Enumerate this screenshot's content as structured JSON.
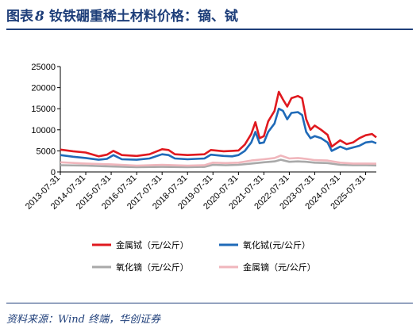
{
  "header": {
    "fig_label": "图表",
    "fig_number": "8",
    "title_text": "钕铁硼重稀土材料价格：镝、铽"
  },
  "source": "资料来源：Wind 终端，华创证券",
  "chart_data": {
    "type": "line",
    "title": "钕铁硼重稀土材料价格：镝、铽",
    "xlabel": "",
    "ylabel": "",
    "ylim": [
      0,
      25000
    ],
    "yticks": [
      0,
      5000,
      10000,
      15000,
      20000,
      25000
    ],
    "xticks": [
      "2013-07-31",
      "2014-07-31",
      "2015-07-31",
      "2016-07-31",
      "2017-07-31",
      "2018-07-31",
      "2019-07-31",
      "2020-07-31",
      "2021-07-31",
      "2022-07-31",
      "2023-07-31",
      "2024-07-31",
      "2025-07-31"
    ],
    "x_start": "2013-07-31",
    "x_end": "2025-12-31",
    "legend_position": "bottom",
    "grid": false,
    "series": [
      {
        "name": "金属铽（元/公斤）",
        "color": "#e0191f",
        "points": [
          [
            "2013-07-31",
            5300
          ],
          [
            "2014-01-31",
            4900
          ],
          [
            "2014-07-31",
            4600
          ],
          [
            "2015-01-31",
            3700
          ],
          [
            "2015-05-31",
            4100
          ],
          [
            "2015-08-31",
            5000
          ],
          [
            "2015-12-31",
            4000
          ],
          [
            "2016-07-31",
            3800
          ],
          [
            "2017-01-31",
            4200
          ],
          [
            "2017-07-31",
            5400
          ],
          [
            "2017-10-31",
            5200
          ],
          [
            "2018-01-31",
            4200
          ],
          [
            "2018-07-31",
            4000
          ],
          [
            "2019-03-31",
            4200
          ],
          [
            "2019-06-30",
            5200
          ],
          [
            "2019-12-31",
            4900
          ],
          [
            "2020-04-30",
            5000
          ],
          [
            "2020-07-31",
            5100
          ],
          [
            "2020-10-31",
            6500
          ],
          [
            "2021-01-31",
            9000
          ],
          [
            "2021-03-31",
            11800
          ],
          [
            "2021-05-31",
            8000
          ],
          [
            "2021-07-31",
            8500
          ],
          [
            "2021-09-31",
            12000
          ],
          [
            "2021-12-31",
            14500
          ],
          [
            "2022-02-28",
            19000
          ],
          [
            "2022-04-30",
            17200
          ],
          [
            "2022-06-30",
            15500
          ],
          [
            "2022-08-31",
            17500
          ],
          [
            "2022-11-30",
            18000
          ],
          [
            "2023-01-31",
            17500
          ],
          [
            "2023-03-31",
            12500
          ],
          [
            "2023-05-31",
            10000
          ],
          [
            "2023-07-31",
            11000
          ],
          [
            "2023-10-31",
            10000
          ],
          [
            "2024-01-31",
            8800
          ],
          [
            "2024-03-31",
            6000
          ],
          [
            "2024-07-31",
            7500
          ],
          [
            "2024-10-31",
            6600
          ],
          [
            "2025-01-31",
            7000
          ],
          [
            "2025-04-30",
            8000
          ],
          [
            "2025-07-31",
            8700
          ],
          [
            "2025-10-31",
            9000
          ],
          [
            "2025-12-31",
            8200
          ]
        ]
      },
      {
        "name": "氧化铽(元/公斤）",
        "color": "#1f6ab8",
        "points": [
          [
            "2013-07-31",
            4000
          ],
          [
            "2014-01-31",
            3600
          ],
          [
            "2014-07-31",
            3300
          ],
          [
            "2015-01-31",
            2900
          ],
          [
            "2015-05-31",
            3100
          ],
          [
            "2015-08-31",
            4000
          ],
          [
            "2015-12-31",
            3000
          ],
          [
            "2016-07-31",
            2900
          ],
          [
            "2017-01-31",
            3200
          ],
          [
            "2017-07-31",
            4200
          ],
          [
            "2017-10-31",
            4000
          ],
          [
            "2018-01-31",
            3200
          ],
          [
            "2018-07-31",
            3000
          ],
          [
            "2019-03-31",
            3200
          ],
          [
            "2019-06-30",
            4100
          ],
          [
            "2019-12-31",
            3800
          ],
          [
            "2020-04-30",
            3700
          ],
          [
            "2020-07-31",
            4000
          ],
          [
            "2020-10-31",
            5000
          ],
          [
            "2021-01-31",
            7000
          ],
          [
            "2021-03-31",
            9500
          ],
          [
            "2021-05-31",
            6800
          ],
          [
            "2021-07-31",
            7000
          ],
          [
            "2021-09-31",
            9500
          ],
          [
            "2021-12-31",
            11500
          ],
          [
            "2022-02-28",
            15000
          ],
          [
            "2022-04-30",
            14500
          ],
          [
            "2022-06-30",
            12500
          ],
          [
            "2022-08-31",
            14000
          ],
          [
            "2022-11-30",
            14200
          ],
          [
            "2023-01-31",
            13500
          ],
          [
            "2023-03-31",
            9500
          ],
          [
            "2023-05-31",
            8000
          ],
          [
            "2023-07-31",
            8500
          ],
          [
            "2023-10-31",
            8000
          ],
          [
            "2024-01-31",
            7000
          ],
          [
            "2024-03-31",
            5000
          ],
          [
            "2024-07-31",
            6000
          ],
          [
            "2024-10-31",
            5400
          ],
          [
            "2025-01-31",
            5800
          ],
          [
            "2025-04-30",
            6200
          ],
          [
            "2025-07-31",
            7000
          ],
          [
            "2025-10-31",
            7200
          ],
          [
            "2025-12-31",
            6800
          ]
        ]
      },
      {
        "name": "氧化镝（元/公斤）",
        "color": "#a9a9a9",
        "points": [
          [
            "2013-07-31",
            1600
          ],
          [
            "2014-07-31",
            1500
          ],
          [
            "2015-07-31",
            1300
          ],
          [
            "2016-07-31",
            1150
          ],
          [
            "2017-07-31",
            1200
          ],
          [
            "2018-07-31",
            1150
          ],
          [
            "2019-03-31",
            1200
          ],
          [
            "2019-07-31",
            1700
          ],
          [
            "2020-01-31",
            1600
          ],
          [
            "2020-07-31",
            1700
          ],
          [
            "2021-01-31",
            2000
          ],
          [
            "2021-07-31",
            2300
          ],
          [
            "2021-12-31",
            2500
          ],
          [
            "2022-03-31",
            2900
          ],
          [
            "2022-07-31",
            2400
          ],
          [
            "2022-11-31",
            2500
          ],
          [
            "2023-03-31",
            2400
          ],
          [
            "2023-07-31",
            2200
          ],
          [
            "2024-01-31",
            2100
          ],
          [
            "2024-07-31",
            1700
          ],
          [
            "2025-01-31",
            1600
          ],
          [
            "2025-07-31",
            1600
          ],
          [
            "2025-12-31",
            1550
          ]
        ]
      },
      {
        "name": "金属镝（元/公斤）",
        "color": "#f0b6bc",
        "points": [
          [
            "2013-07-31",
            2300
          ],
          [
            "2014-07-31",
            2000
          ],
          [
            "2015-07-31",
            1800
          ],
          [
            "2016-07-31",
            1500
          ],
          [
            "2017-07-31",
            1700
          ],
          [
            "2018-07-31",
            1500
          ],
          [
            "2019-03-31",
            1600
          ],
          [
            "2019-07-31",
            2200
          ],
          [
            "2020-01-31",
            2100
          ],
          [
            "2020-07-31",
            2200
          ],
          [
            "2021-01-31",
            2700
          ],
          [
            "2021-07-31",
            3000
          ],
          [
            "2021-12-31",
            3300
          ],
          [
            "2022-03-31",
            3900
          ],
          [
            "2022-07-31",
            3200
          ],
          [
            "2022-11-31",
            3300
          ],
          [
            "2023-03-31",
            3100
          ],
          [
            "2023-07-31",
            2800
          ],
          [
            "2024-01-31",
            2700
          ],
          [
            "2024-07-31",
            2200
          ],
          [
            "2025-01-31",
            2000
          ],
          [
            "2025-07-31",
            2000
          ],
          [
            "2025-12-31",
            1950
          ]
        ]
      }
    ]
  }
}
